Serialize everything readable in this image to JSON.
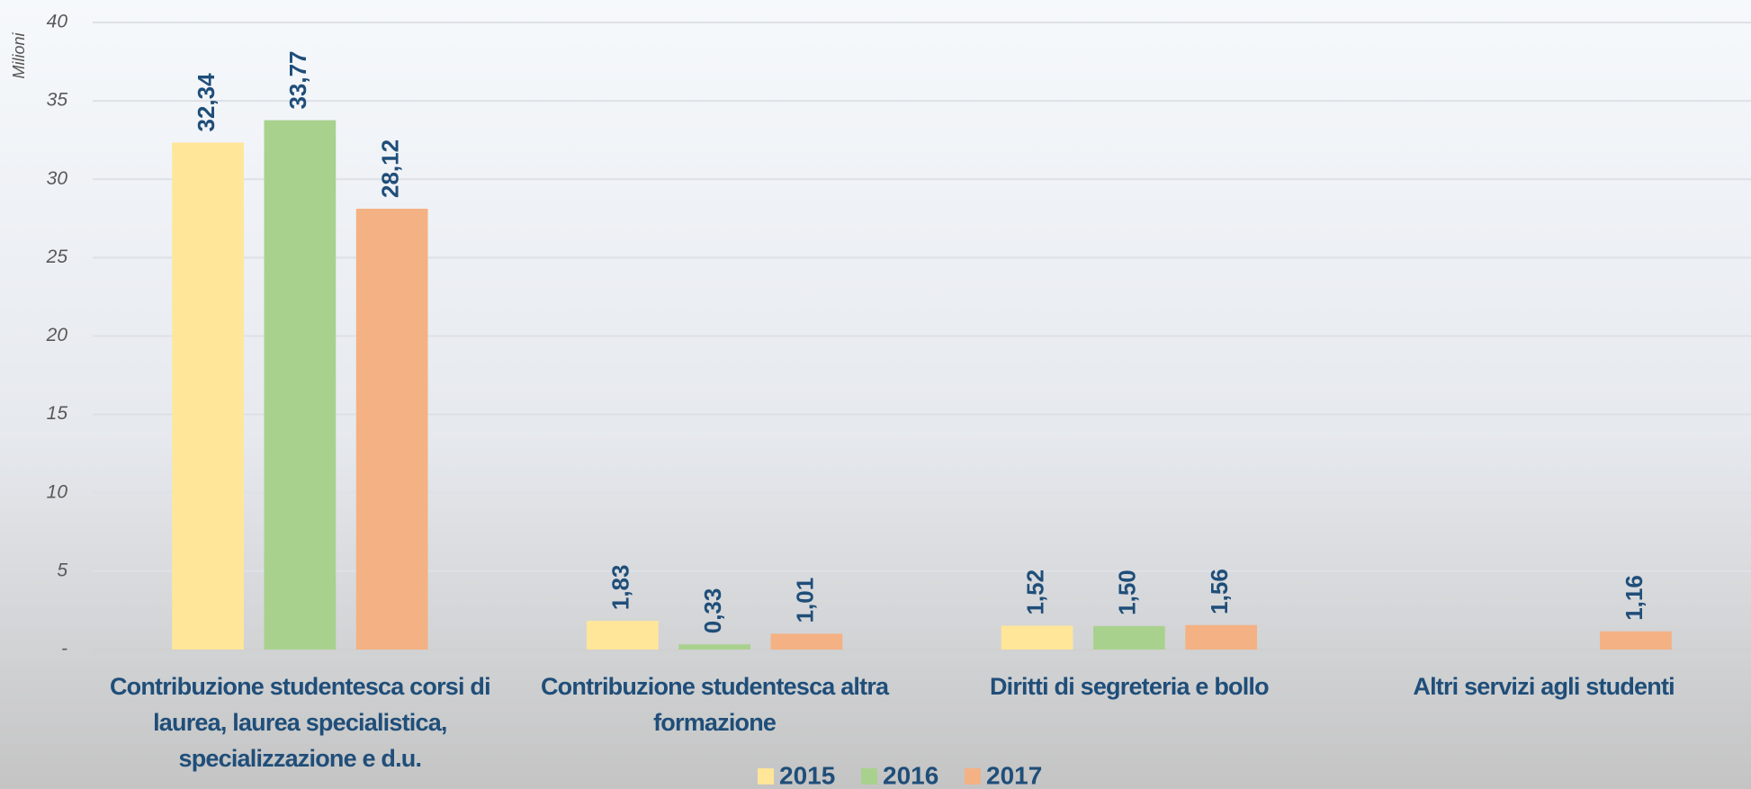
{
  "chart_data": {
    "type": "bar",
    "y_label": "Milioni",
    "categories": [
      "Contribuzione studentesca corsi di laurea, laurea specialistica, specializzazione e d.u.",
      "Contribuzione studentesca altra formazione",
      "Diritti di segreteria e bollo",
      "Altri servizi agli studenti"
    ],
    "series": [
      {
        "name": "2015",
        "color": "#ffe699",
        "values": [
          32.34,
          1.83,
          1.52,
          null
        ],
        "value_labels": [
          "32,34",
          "1,83",
          "1,52",
          null
        ]
      },
      {
        "name": "2016",
        "color": "#a9d18e",
        "values": [
          33.77,
          0.33,
          1.5,
          null
        ],
        "value_labels": [
          "33,77",
          "0,33",
          "1,50",
          null
        ]
      },
      {
        "name": "2017",
        "color": "#f4b183",
        "values": [
          28.12,
          1.01,
          1.56,
          1.16
        ],
        "value_labels": [
          "28,12",
          "1,01",
          "1,56",
          "1,16"
        ]
      }
    ],
    "ylim": [
      0,
      40
    ],
    "yticks": [
      {
        "value": 0,
        "label": "-"
      },
      5,
      10,
      15,
      20,
      25,
      30,
      35,
      40
    ],
    "grid": true,
    "legend": "bottom"
  }
}
